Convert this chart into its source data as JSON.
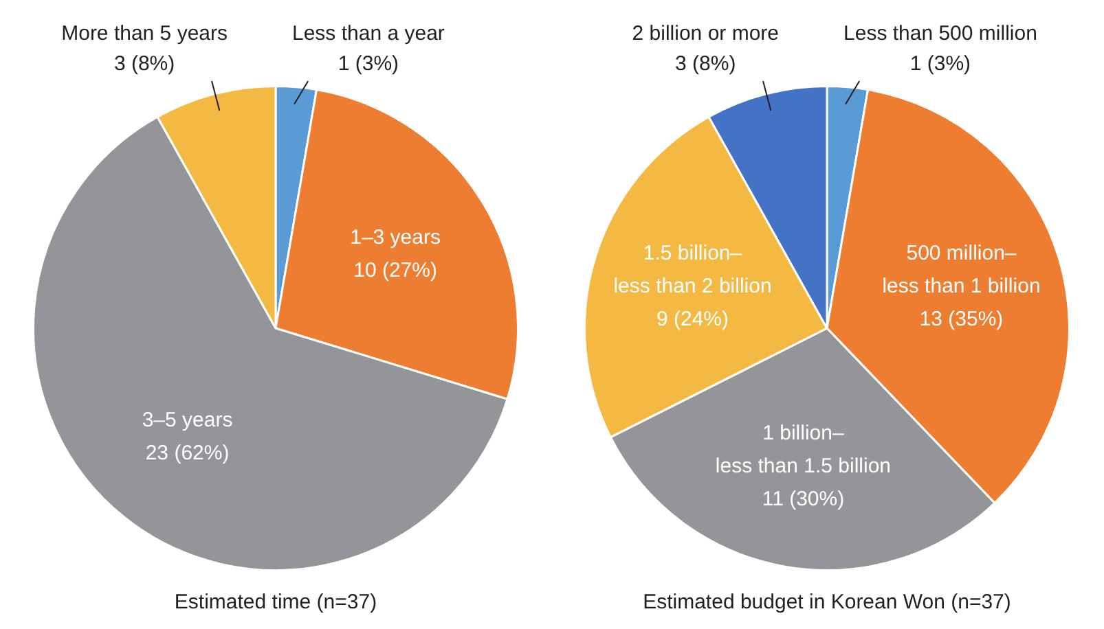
{
  "chart_data": [
    {
      "type": "pie",
      "title": "Estimated time (n=37)",
      "categories": [
        "Less than a year",
        "1–3 years",
        "3–5 years",
        "More than 5 years"
      ],
      "values": [
        1,
        10,
        23,
        3
      ],
      "colors": [
        "#5b9bd5",
        "#ed7d31",
        "#939598",
        "#f4b942"
      ],
      "value_labels": [
        "1 (3%)",
        "10 (27%)",
        "23 (62%)",
        "3 (8%)"
      ]
    },
    {
      "type": "pie",
      "title": "Estimated budget in Korean Won (n=37)",
      "categories": [
        "Less than 500 million",
        "500 million–less than 1 billion",
        "1 billion–less than 1.5 billion",
        "1.5 billion–less than 2 billion",
        "2 billion or more"
      ],
      "values": [
        1,
        13,
        11,
        9,
        3
      ],
      "colors": [
        "#5b9bd5",
        "#ed7d31",
        "#939598",
        "#f4b942",
        "#4472c4"
      ],
      "value_labels": [
        "1 (3%)",
        "13 (35%)",
        "11 (30%)",
        "9 (24%)",
        "3 (8%)"
      ]
    }
  ]
}
